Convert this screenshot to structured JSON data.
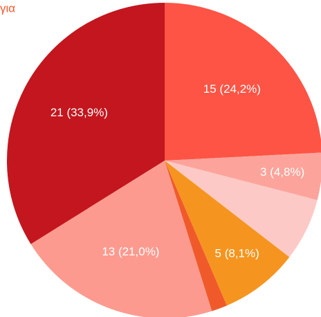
{
  "chart_data": {
    "type": "pie",
    "title": "για",
    "categories": [
      null,
      null,
      null,
      null,
      null,
      null,
      null
    ],
    "values": [
      15,
      3,
      4,
      5,
      1,
      13,
      21
    ],
    "value_labels": [
      "15 (24,2%)",
      "3 (4,8%)",
      null,
      "5 (8,1%)",
      null,
      "13 (21,0%)",
      "21 (33,9%)"
    ],
    "colors": [
      "#fe5445",
      "#fca49b",
      "#fdc9c6",
      "#f5951f",
      "#f05a2a",
      "#fd9a8f",
      "#c3161e"
    ]
  }
}
